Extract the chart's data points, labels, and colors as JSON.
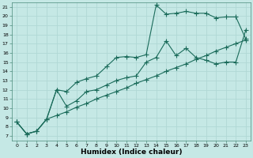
{
  "xlabel": "Humidex (Indice chaleur)",
  "background_color": "#c5e8e5",
  "grid_color": "#b0d8d5",
  "line_color": "#1a6b5a",
  "xlim": [
    -0.5,
    23.5
  ],
  "ylim": [
    6.5,
    21.5
  ],
  "xticks": [
    0,
    1,
    2,
    3,
    4,
    5,
    6,
    7,
    8,
    9,
    10,
    11,
    12,
    13,
    14,
    15,
    16,
    17,
    18,
    19,
    20,
    21,
    22,
    23
  ],
  "yticks": [
    7,
    8,
    9,
    10,
    11,
    12,
    13,
    14,
    15,
    16,
    17,
    18,
    19,
    20,
    21
  ],
  "line1_x": [
    0,
    1,
    2,
    3,
    4,
    5,
    6,
    7,
    8,
    9,
    10,
    11,
    12,
    13,
    14,
    15,
    16,
    17,
    18,
    19,
    20,
    21,
    22,
    23
  ],
  "line1_y": [
    8.5,
    7.2,
    7.5,
    8.8,
    9.2,
    9.6,
    10.1,
    10.5,
    11.0,
    11.4,
    11.8,
    12.2,
    12.7,
    13.1,
    13.5,
    14.0,
    14.4,
    14.8,
    15.3,
    15.7,
    16.2,
    16.6,
    17.0,
    17.4
  ],
  "line2_x": [
    0,
    1,
    2,
    3,
    4,
    5,
    6,
    7,
    8,
    9,
    10,
    11,
    12,
    13,
    14,
    15,
    16,
    17,
    18,
    19,
    20,
    21,
    22,
    23
  ],
  "line2_y": [
    8.5,
    7.2,
    7.5,
    8.8,
    12.0,
    11.8,
    12.8,
    13.2,
    13.5,
    14.5,
    15.5,
    15.6,
    15.5,
    15.8,
    21.2,
    20.2,
    20.3,
    20.5,
    20.3,
    20.3,
    19.8,
    19.9,
    19.9,
    17.5
  ],
  "line3_x": [
    0,
    1,
    2,
    3,
    4,
    5,
    6,
    7,
    8,
    9,
    10,
    11,
    12,
    13,
    14,
    15,
    16,
    17,
    18,
    19,
    20,
    21,
    22,
    23
  ],
  "line3_y": [
    8.5,
    7.2,
    7.5,
    8.8,
    12.0,
    10.2,
    10.8,
    11.8,
    12.0,
    12.5,
    13.0,
    13.3,
    13.5,
    15.0,
    15.5,
    17.3,
    15.7,
    16.5,
    15.5,
    15.2,
    14.8,
    15.0,
    15.0,
    18.5
  ],
  "marker_size": 2.5
}
